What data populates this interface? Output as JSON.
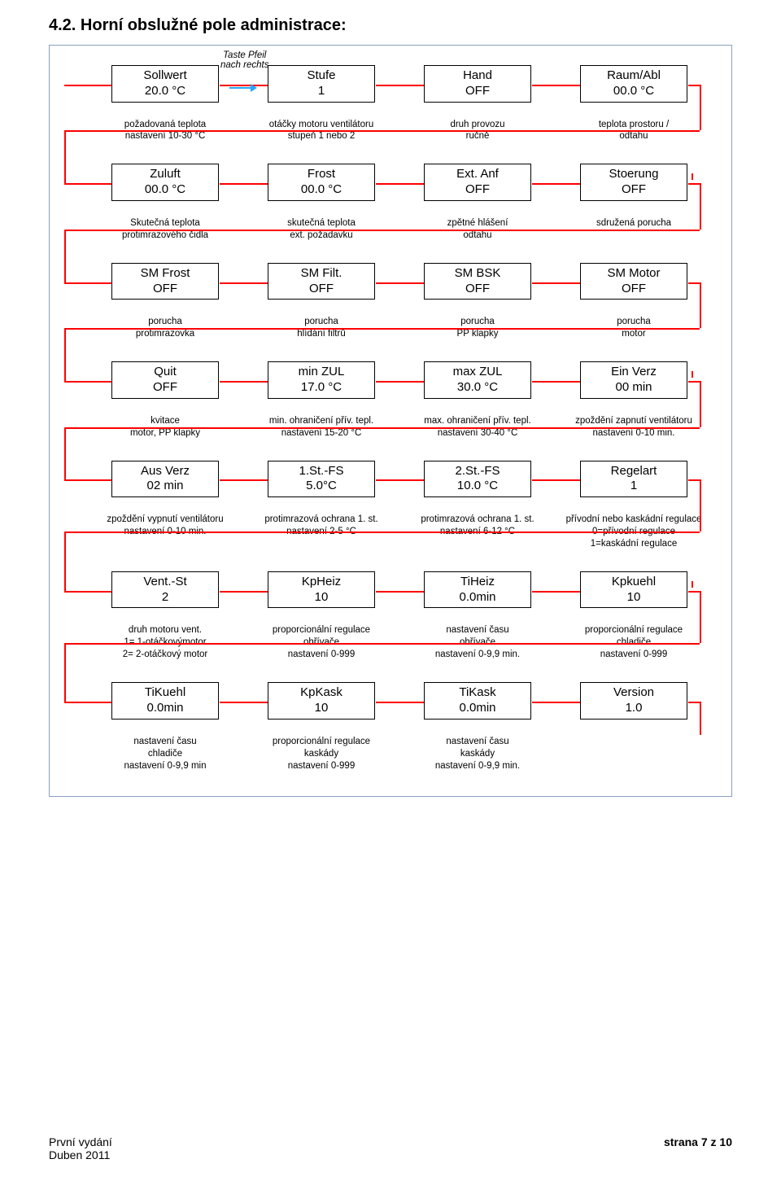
{
  "heading": "4.2. Horní obslužné pole administrace:",
  "arrow_text": "Taste Pfeil\nnach rechts",
  "rows": [
    {
      "cells": [
        {
          "line1": "Sollwert",
          "line2": "20.0 °C",
          "caption": "požadovaná teplota\nnastavení 10-30 °C"
        },
        {
          "line1": "Stufe",
          "line2": "1",
          "caption": "otáčky motoru ventilátoru\nstupeň 1 nebo 2"
        },
        {
          "line1": "Hand",
          "line2": "OFF",
          "caption": "druh provozu\nručně"
        },
        {
          "line1": "Raum/Abl",
          "line2": "00.0 °C",
          "caption": "teplota prostoru /\nodtahu"
        }
      ]
    },
    {
      "cells": [
        {
          "line1": "Zuluft",
          "line2": "00.0 °C",
          "caption": "Skutečná teplota\nprotimrazového čidla"
        },
        {
          "line1": "Frost",
          "line2": "00.0 °C",
          "caption": "skutečná teplota\next. požadavku"
        },
        {
          "line1": "Ext. Anf",
          "line2": "OFF",
          "caption": "zpětné hlášení\nodtahu"
        },
        {
          "line1": "Stoerung",
          "line2": "OFF",
          "caption": "sdružená porucha",
          "tick": true
        }
      ]
    },
    {
      "cells": [
        {
          "line1": "SM Frost",
          "line2": "OFF",
          "caption": "porucha\nprotimrazovka"
        },
        {
          "line1": "SM Filt.",
          "line2": "OFF",
          "caption": "porucha\nhlídání filtrů"
        },
        {
          "line1": "SM BSK",
          "line2": "OFF",
          "caption": "porucha\nPP klapky"
        },
        {
          "line1": "SM Motor",
          "line2": "OFF",
          "caption": "porucha\nmotor"
        }
      ]
    },
    {
      "cells": [
        {
          "line1": "Quit",
          "line2": "OFF",
          "caption": "kvitace\nmotor, PP klapky"
        },
        {
          "line1": "min ZUL",
          "line2": "17.0 °C",
          "caption": "min. ohraničení přív. tepl.\nnastavení 15-20 °C"
        },
        {
          "line1": "max ZUL",
          "line2": "30.0 °C",
          "caption": "max. ohraničení přív. tepl.\nnastavení 30-40 °C"
        },
        {
          "line1": "Ein Verz",
          "line2": "00 min",
          "caption": "zpoždění zapnutí ventilátoru\nnastavení 0-10 min.",
          "tick": true
        }
      ]
    },
    {
      "cells": [
        {
          "line1": "Aus Verz",
          "line2": "02 min",
          "caption": "zpoždění vypnutí ventilátoru\nnastavení 0-10 min."
        },
        {
          "line1": "1.St.-FS",
          "line2": "5.0°C",
          "caption": "protimrazová ochrana 1. st.\nnastavení 2-5 °C"
        },
        {
          "line1": "2.St.-FS",
          "line2": "10.0 °C",
          "caption": "protimrazová ochrana 1. st.\nnastavení 6-12 °C"
        },
        {
          "line1": "Regelart",
          "line2": "1",
          "caption": "přívodní nebo kaskádní regulace\n0=přívodní regulace\n1=kaskádní regulace"
        }
      ]
    },
    {
      "cells": [
        {
          "line1": "Vent.-St",
          "line2": "2",
          "caption": "druh motoru vent.\n1= 1-otáčkovýmotor\n2= 2-otáčkový motor"
        },
        {
          "line1": "KpHeiz",
          "line2": "10",
          "caption": "proporcionální regulace\nohřívače\nnastavení 0-999"
        },
        {
          "line1": "TiHeiz",
          "line2": "0.0min",
          "caption": "nastavení času\nohřívače\nnastavení 0-9,9 min."
        },
        {
          "line1": "Kpkuehl",
          "line2": "10",
          "caption": "proporcionální regulace\nchladiče\nnastavení 0-999",
          "tick": true
        }
      ]
    },
    {
      "cells": [
        {
          "line1": "TiKuehl",
          "line2": "0.0min",
          "caption": "nastavení času\nchladiče\nnastavení 0-9,9 min"
        },
        {
          "line1": "KpKask",
          "line2": "10",
          "caption": "proporcionální regulace\nkaskády\nnastavení 0-999"
        },
        {
          "line1": "TiKask",
          "line2": "0.0min",
          "caption": "nastavení času\nkaskády\nnastavení 0-9,9 min."
        },
        {
          "line1": "Version",
          "line2": "1.0",
          "caption": ""
        }
      ]
    }
  ],
  "footer": {
    "edition": "První vydání",
    "date": "Duben 2011",
    "page_label": "strana 7 z 10"
  },
  "colors": {
    "line": "#ff0000",
    "frame": "#8aa0c0",
    "arrow": "#2aa6ff"
  }
}
